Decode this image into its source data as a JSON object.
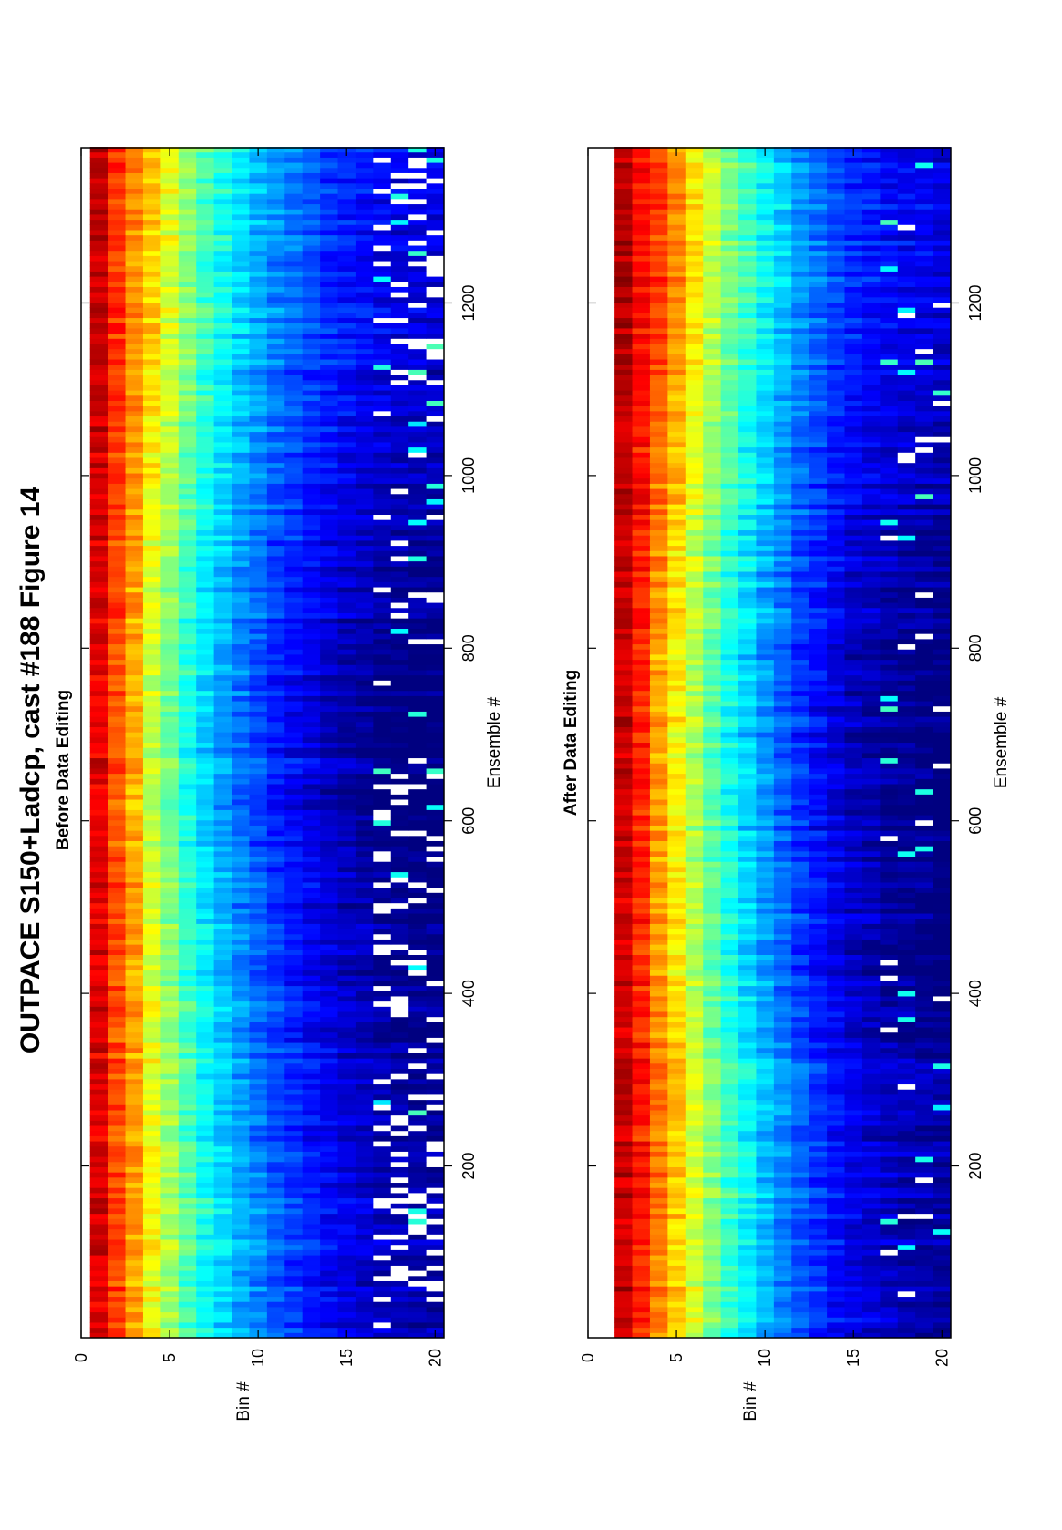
{
  "figure": {
    "title": "OUTPACE S150+Ladcp, cast #188  Figure 14"
  },
  "chart_data": [
    {
      "type": "heatmap",
      "title": "Before Data Editing",
      "xlabel": "Ensemble #",
      "ylabel": "Bin #",
      "xlim": [
        1,
        1380
      ],
      "ylim": [
        0,
        20.5
      ],
      "xticks": [
        200,
        400,
        600,
        800,
        1000,
        1200
      ],
      "yticks": [
        0,
        5,
        10,
        15,
        20
      ],
      "colormap": "jet",
      "y_orientation": "reversed",
      "bins": [
        1,
        20
      ],
      "white_gaps": "frequent in bins 17-20, especially ensembles 50-300 and 350-650",
      "bin_level_profile": [
        {
          "bin": 1,
          "level": 0.92
        },
        {
          "bin": 2,
          "level": 0.82
        },
        {
          "bin": 3,
          "level": 0.73
        },
        {
          "bin": 4,
          "level": 0.64
        },
        {
          "bin": 5,
          "level": 0.56
        },
        {
          "bin": 6,
          "level": 0.48
        },
        {
          "bin": 7,
          "level": 0.41
        },
        {
          "bin": 8,
          "level": 0.36
        },
        {
          "bin": 9,
          "level": 0.31
        },
        {
          "bin": 10,
          "level": 0.27
        },
        {
          "bin": 11,
          "level": 0.23
        },
        {
          "bin": 12,
          "level": 0.2
        },
        {
          "bin": 13,
          "level": 0.17
        },
        {
          "bin": 14,
          "level": 0.14
        },
        {
          "bin": 15,
          "level": 0.12
        },
        {
          "bin": 16,
          "level": 0.1
        },
        {
          "bin": 17,
          "level": 0.08
        },
        {
          "bin": 18,
          "level": 0.07
        },
        {
          "bin": 19,
          "level": 0.06
        },
        {
          "bin": 20,
          "level": 0.06
        }
      ]
    },
    {
      "type": "heatmap",
      "title": "After Data Editing",
      "xlabel": "Ensemble #",
      "ylabel": "Bin #",
      "xlim": [
        1,
        1380
      ],
      "ylim": [
        0,
        20.5
      ],
      "xticks": [
        200,
        400,
        600,
        800,
        1000,
        1200
      ],
      "yticks": [
        0,
        5,
        10,
        15,
        20
      ],
      "colormap": "jet",
      "y_orientation": "reversed",
      "bins": [
        2,
        20
      ],
      "white_gaps": "bin 1 removed; sparse gaps in bins 18-20",
      "bin_level_profile": [
        {
          "bin": 2,
          "level": 0.94
        },
        {
          "bin": 3,
          "level": 0.86
        },
        {
          "bin": 4,
          "level": 0.78
        },
        {
          "bin": 5,
          "level": 0.7
        },
        {
          "bin": 6,
          "level": 0.61
        },
        {
          "bin": 7,
          "level": 0.53
        },
        {
          "bin": 8,
          "level": 0.46
        },
        {
          "bin": 9,
          "level": 0.4
        },
        {
          "bin": 10,
          "level": 0.34
        },
        {
          "bin": 11,
          "level": 0.29
        },
        {
          "bin": 12,
          "level": 0.24
        },
        {
          "bin": 13,
          "level": 0.2
        },
        {
          "bin": 14,
          "level": 0.16
        },
        {
          "bin": 15,
          "level": 0.13
        },
        {
          "bin": 16,
          "level": 0.11
        },
        {
          "bin": 17,
          "level": 0.09
        },
        {
          "bin": 18,
          "level": 0.08
        },
        {
          "bin": 19,
          "level": 0.07
        },
        {
          "bin": 20,
          "level": 0.06
        }
      ]
    }
  ]
}
